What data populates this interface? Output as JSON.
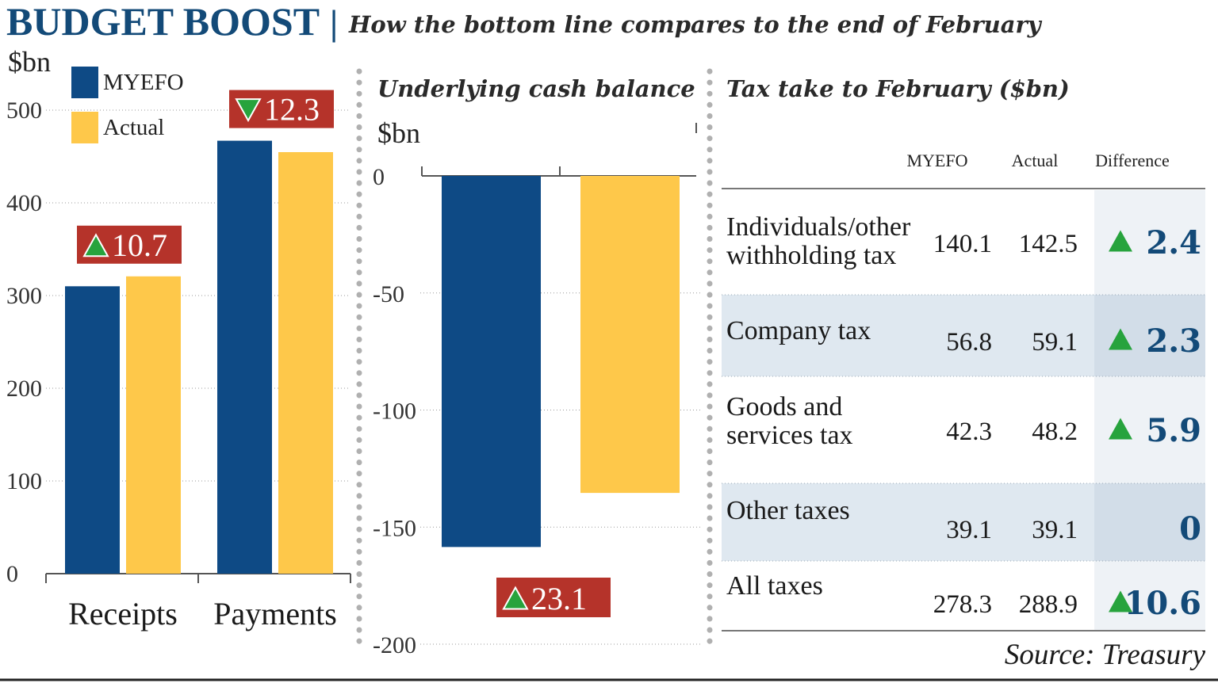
{
  "header": {
    "title": "BUDGET BOOST",
    "separator": "|",
    "subtitle": "How the bottom line compares to the end of February"
  },
  "colors": {
    "myefo": "#0e4a85",
    "actual": "#fec84a",
    "badge": "#b5332a",
    "arrow": "#27a33d",
    "diff_text": "#134a78",
    "row_shade": "#dfe8f0"
  },
  "legend": [
    {
      "name": "MYEFO",
      "color": "#0e4a85"
    },
    {
      "name": "Actual",
      "color": "#fec84a"
    }
  ],
  "chart_data": [
    {
      "type": "bar",
      "ylabel": "$bn",
      "ylim": [
        0,
        500
      ],
      "yticks": [
        0,
        100,
        200,
        300,
        400,
        500
      ],
      "categories": [
        "Receipts",
        "Payments"
      ],
      "series": [
        {
          "name": "MYEFO",
          "values": [
            310,
            467
          ]
        },
        {
          "name": "Actual",
          "values": [
            320.7,
            454.7
          ]
        }
      ],
      "annotations": [
        {
          "category": "Receipts",
          "text": "10.7",
          "direction": "up"
        },
        {
          "category": "Payments",
          "text": "12.3",
          "direction": "down"
        }
      ],
      "legend_position": "top-left"
    },
    {
      "type": "bar",
      "title": "Underlying cash balance",
      "ylabel": "$bn",
      "ylim": [
        -200,
        0
      ],
      "yticks": [
        0,
        -50,
        -100,
        -150,
        -200
      ],
      "series": [
        {
          "name": "MYEFO",
          "values": [
            -158.5
          ]
        },
        {
          "name": "Actual",
          "values": [
            -135.4
          ]
        }
      ],
      "annotations": [
        {
          "text": "23.1",
          "direction": "up"
        }
      ]
    },
    {
      "type": "table",
      "title": "Tax take to February ($bn)",
      "columns": [
        "",
        "MYEFO",
        "Actual",
        "Difference"
      ],
      "rows": [
        {
          "label": [
            "Individuals/other",
            "withholding tax"
          ],
          "myefo": "140.1",
          "actual": "142.5",
          "diff": "2.4",
          "arrow": true
        },
        {
          "label": [
            "Company tax"
          ],
          "myefo": "56.8",
          "actual": "59.1",
          "diff": "2.3",
          "arrow": true
        },
        {
          "label": [
            "Goods and",
            "services tax"
          ],
          "myefo": "42.3",
          "actual": "48.2",
          "diff": "5.9",
          "arrow": true
        },
        {
          "label": [
            "Other taxes"
          ],
          "myefo": "39.1",
          "actual": "39.1",
          "diff": "0",
          "arrow": false
        },
        {
          "label": [
            "All taxes"
          ],
          "myefo": "278.3",
          "actual": "288.9",
          "diff": "10.6",
          "arrow": true
        }
      ]
    }
  ],
  "source": "Source: Treasury"
}
